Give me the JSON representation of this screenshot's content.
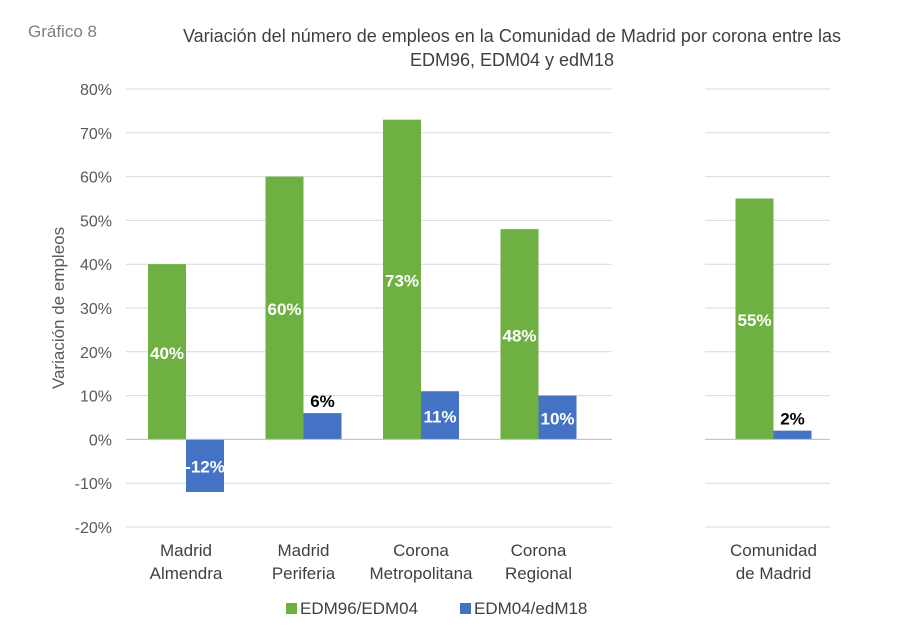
{
  "figure_label": "Gráfico 8",
  "chart_data": {
    "type": "bar",
    "title_lines": [
      "Variación del número de empleos en la Comunidad de Madrid por corona entre las",
      "EDM96, EDM04 y edM18"
    ],
    "ylabel": "Variación de empleos",
    "xlabel": "",
    "ylim": [
      -20,
      80
    ],
    "ytick_step": 10,
    "ytick_labels": [
      "-20%",
      "-10%",
      "0%",
      "10%",
      "20%",
      "30%",
      "40%",
      "50%",
      "60%",
      "70%",
      "80%"
    ],
    "grid": true,
    "legend_position": "bottom",
    "categories": [
      [
        "Madrid",
        "Almendra"
      ],
      [
        "Madrid",
        "Periferia"
      ],
      [
        "Corona",
        "Metropolitana"
      ],
      [
        "Corona",
        "Regional"
      ],
      [
        "Comunidad",
        "de Madrid"
      ]
    ],
    "series": [
      {
        "name": "EDM96/EDM04",
        "color": "#6fb043",
        "values": [
          40,
          60,
          73,
          48,
          55
        ],
        "labels": [
          "40%",
          "60%",
          "73%",
          "48%",
          "55%"
        ]
      },
      {
        "name": "EDM04/edM18",
        "color": "#4472c4",
        "values": [
          -12,
          6,
          11,
          10,
          2
        ],
        "labels": [
          "-12%",
          "6%",
          "11%",
          "10%",
          "2%"
        ]
      }
    ]
  }
}
